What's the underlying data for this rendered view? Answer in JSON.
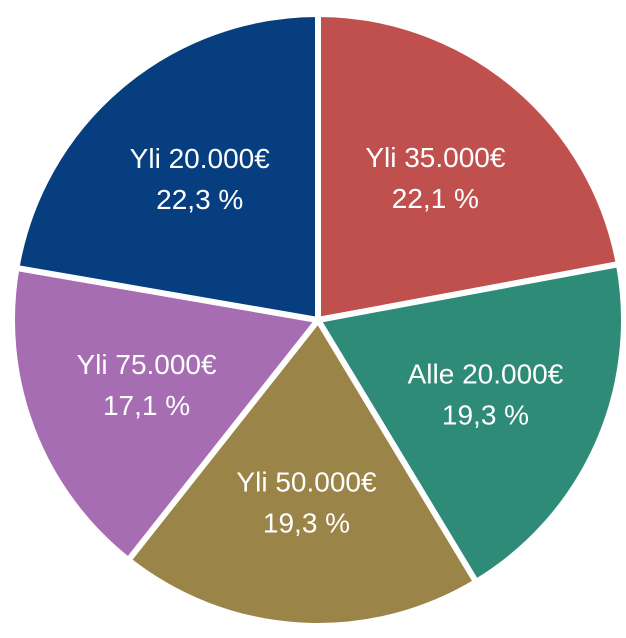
{
  "chart_data": {
    "type": "pie",
    "categories": [
      "Yli 35.000€",
      "Alle 20.000€",
      "Yli 50.000€",
      "Yli 75.000€",
      "Yli 20.000€"
    ],
    "values": [
      22.1,
      19.3,
      19.3,
      17.1,
      22.3
    ],
    "value_labels": [
      "22,1 %",
      "19,3 %",
      "19,3 %",
      "17,1 %",
      "22,3 %"
    ],
    "colors": [
      "#c0504d",
      "#2e8b77",
      "#9a8447",
      "#a66db3",
      "#073e7f"
    ]
  }
}
